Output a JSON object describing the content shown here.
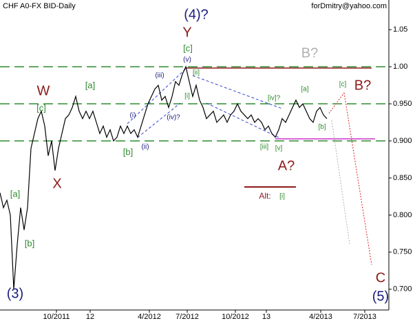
{
  "chart_data": {
    "type": "line",
    "title": "CHF A0-FX BID-Daily",
    "subtitle": "forDmitry@yahoo.com",
    "color": "#000000",
    "values": [
      0.83,
      0.81,
      0.82,
      0.8,
      0.7,
      0.76,
      0.81,
      0.78,
      0.81,
      0.89,
      0.91,
      0.93,
      0.94,
      0.92,
      0.88,
      0.9,
      0.86,
      0.89,
      0.91,
      0.93,
      0.935,
      0.945,
      0.96,
      0.94,
      0.93,
      0.94,
      0.93,
      0.94,
      0.925,
      0.91,
      0.92,
      0.905,
      0.915,
      0.9,
      0.905,
      0.92,
      0.91,
      0.92,
      0.91,
      0.915,
      0.905,
      0.92,
      0.935,
      0.95,
      0.96,
      0.97,
      0.975,
      0.955,
      0.96,
      0.945,
      0.96,
      0.98,
      0.975,
      0.99,
      1.0,
      0.98,
      0.96,
      0.975,
      0.955,
      0.945,
      0.93,
      0.935,
      0.94,
      0.925,
      0.93,
      0.935,
      0.925,
      0.935,
      0.94,
      0.95,
      0.94,
      0.935,
      0.93,
      0.935,
      0.925,
      0.93,
      0.925,
      0.915,
      0.92,
      0.91,
      0.905,
      0.915,
      0.93,
      0.925,
      0.935,
      0.945,
      0.955,
      0.945,
      0.95,
      0.94,
      0.93,
      0.925,
      0.94,
      0.945,
      0.935,
      0.93
    ],
    "xlim": [
      0,
      113
    ],
    "xticks": [
      {
        "value": 16.4,
        "label": "10/2011"
      },
      {
        "value": 26.2,
        "label": "12"
      },
      {
        "value": 43.4,
        "label": "4/2012"
      },
      {
        "value": 54.4,
        "label": "7/2012"
      },
      {
        "value": 68.4,
        "label": "10/2012"
      },
      {
        "value": 77.4,
        "label": "13"
      },
      {
        "value": 93.2,
        "label": "4/2013"
      },
      {
        "value": 106,
        "label": "7/2013"
      }
    ],
    "ylim": [
      0.672,
      1.09
    ],
    "yticks": [
      1.05,
      {
        "value": 1.0,
        "label": "1.00"
      },
      {
        "value": 0.95,
        "label": "0.950"
      },
      {
        "value": 0.9,
        "label": "0.900"
      },
      {
        "value": 0.85,
        "label": "0.850"
      },
      {
        "value": 0.8,
        "label": "0.800"
      },
      {
        "value": 0.75,
        "label": "0.750"
      },
      {
        "value": 0.7,
        "label": "0.700"
      }
    ],
    "levels": [
      1.0,
      0.95,
      0.9
    ],
    "level_color": "#2e8b2e",
    "annotations": [
      "(4)?",
      "Y",
      "[c]",
      "W",
      "[a]",
      "[c]",
      "X",
      "[a]",
      "[b]",
      "(3)",
      "B?",
      "A?",
      "B?",
      "C",
      "(5)",
      "(i)",
      "(ii)",
      "(iii)",
      "(iv)?",
      "(v)",
      "[i]",
      "[ii]",
      "[iii]",
      "[iv]?",
      "[v]",
      "[a]",
      "[b]",
      "[c]",
      "[b]",
      "Alt:",
      "[i]"
    ]
  }
}
